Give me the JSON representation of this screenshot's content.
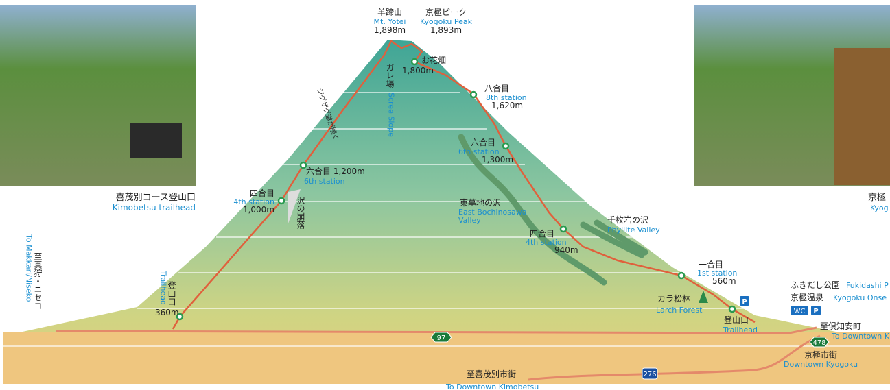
{
  "peaks": [
    {
      "jp": "羊蹄山",
      "en": "Mt. Yotei",
      "elev": "1,898m"
    },
    {
      "jp": "京極ピーク",
      "en": "Kyogoku Peak",
      "elev": "1,893m"
    }
  ],
  "stations": [
    {
      "jp": "お花畑",
      "elev": "1,800m"
    },
    {
      "jp": "八合目",
      "en": "8th station",
      "elev": "1,620m"
    },
    {
      "jp": "六合目",
      "en": "6th station",
      "elev": "1,300m"
    },
    {
      "jp": "六合目 1,200m",
      "en": "6th station"
    },
    {
      "jp": "四合目",
      "en": "4th station",
      "elev": "1,000m"
    },
    {
      "jp": "四合目",
      "en": "4th station",
      "elev": "940m"
    },
    {
      "jp": "一合目",
      "en": "1st station",
      "elev": "560m"
    },
    {
      "jp": "登山口",
      "en": "Trailhead",
      "elev": "360m"
    },
    {
      "jp": "登山口",
      "en": "Trailhead"
    }
  ],
  "features": [
    {
      "jp": "ガレ場",
      "en": "Scree Slope"
    },
    {
      "jp": "ジグザグ道が続く"
    },
    {
      "jp": "沢の崩落"
    },
    {
      "jp": "東墓地の沢",
      "en": "East Bochinosawa Valley"
    },
    {
      "jp": "千枚岩の沢",
      "en": "Phyllite Valley"
    },
    {
      "jp": "カラ松林",
      "en": "Larch Forest"
    }
  ],
  "photos": [
    {
      "jp": "喜茂別コース登山口",
      "en": "Kimobetsu trailhead"
    },
    {
      "jp": "京極",
      "en": "Kyog"
    }
  ],
  "places": [
    {
      "jp": "至真狩・ニセコ",
      "en": "To Makkari/Niseko"
    },
    {
      "jp": "ふきだし公園",
      "en": "Fukidashi P"
    },
    {
      "jp": "京極温泉",
      "en": "Kyogoku Onse"
    },
    {
      "jp": "至倶知安町",
      "en": "To Downtown K"
    },
    {
      "jp": "京極市街",
      "en": "Downtown Kyogoku"
    },
    {
      "jp": "至喜茂別市街",
      "en": "To Downtown Kimobetsu"
    }
  ],
  "icons": {
    "wc": "WC",
    "parking": "P"
  },
  "roads": [
    "97",
    "478",
    "276"
  ]
}
